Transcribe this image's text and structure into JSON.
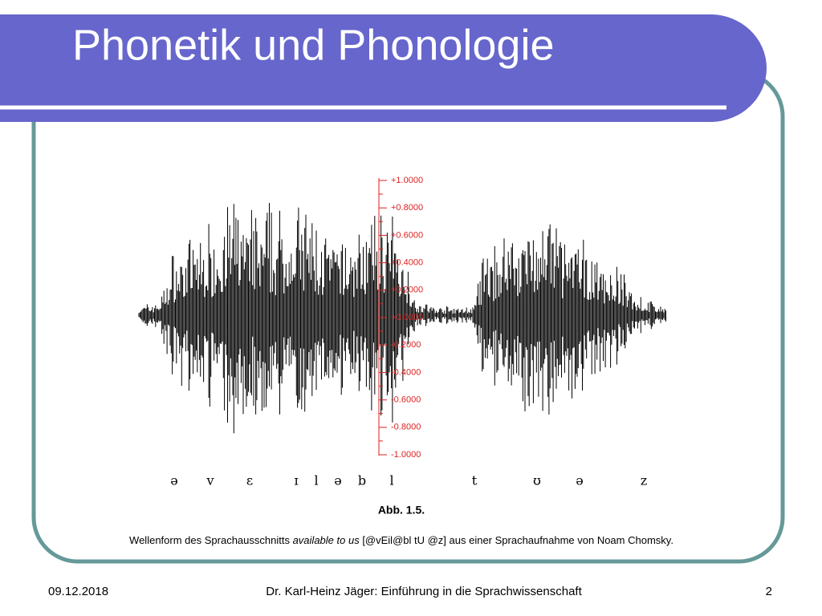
{
  "slide": {
    "title": "Phonetik und Phonologie",
    "figure": {
      "axis_labels": [
        "+1.0000",
        "+0.8000",
        "+0.6000",
        "+0.4000",
        "+0.2000",
        "+0.0000",
        "-0.2000",
        "-0.4000",
        "-0.6000",
        "-0.8000",
        "-1.0000"
      ],
      "phonemes": [
        "ə",
        "v",
        "ɛ",
        "ɪ",
        "l",
        "ə",
        "b",
        "l",
        "t",
        "ʊ",
        "ə",
        "z"
      ],
      "caption_label": "Abb. 1.5.",
      "caption": {
        "before": "Wellenform des Sprachausschnitts ",
        "italic": "available to us",
        "after": " [@vEil@bl tU @z] aus einer Sprachaufnahme von Noam Chomsky."
      }
    },
    "footer": {
      "date": "09.12.2018",
      "author": "Dr. Karl-Heinz Jäger: Einführung in die Sprachwissenschaft",
      "page": "2"
    }
  }
}
